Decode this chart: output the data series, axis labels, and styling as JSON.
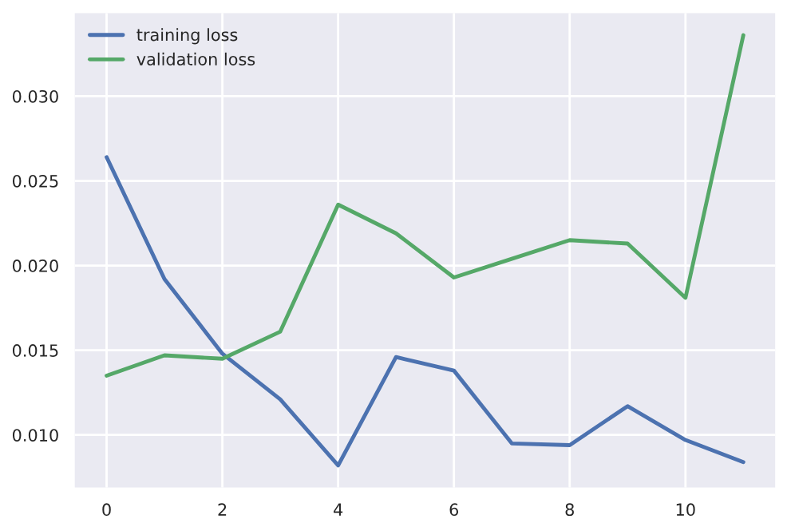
{
  "chart_data": {
    "type": "line",
    "x": [
      0,
      1,
      2,
      3,
      4,
      5,
      6,
      7,
      8,
      9,
      10,
      11
    ],
    "series": [
      {
        "name": "training loss",
        "color": "#4c72b0",
        "values": [
          0.0264,
          0.0192,
          0.0148,
          0.0121,
          0.0082,
          0.0146,
          0.0138,
          0.0095,
          0.0094,
          0.0117,
          0.0097,
          0.0084
        ]
      },
      {
        "name": "validation loss",
        "color": "#55a868",
        "values": [
          0.0135,
          0.0147,
          0.0145,
          0.0161,
          0.0236,
          0.0219,
          0.0193,
          0.0204,
          0.0215,
          0.0213,
          0.0181,
          0.0336
        ]
      }
    ],
    "xlim": [
      -0.55,
      11.55
    ],
    "ylim": [
      0.0069,
      0.0349
    ],
    "xticks": [
      0,
      2,
      4,
      6,
      8,
      10
    ],
    "yticks": [
      {
        "value": 0.01,
        "label": "0.010"
      },
      {
        "value": 0.015,
        "label": "0.015"
      },
      {
        "value": 0.02,
        "label": "0.020"
      },
      {
        "value": 0.025,
        "label": "0.025"
      },
      {
        "value": 0.03,
        "label": "0.030"
      }
    ],
    "grid": true,
    "legend": "top left",
    "marker": "none",
    "line_style": "solid"
  }
}
